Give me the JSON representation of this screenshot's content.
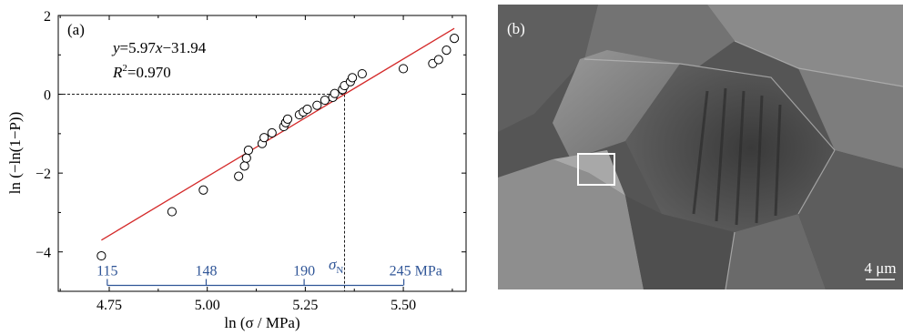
{
  "panel_a": {
    "label": "(a)",
    "equation": "y=5.97x−31.94",
    "equation_y": "y",
    "equation_rest": "=5.97",
    "equation_x": "x",
    "equation_tail": "−31.94",
    "r2_prefix": "R",
    "r2_sup": "2",
    "r2_value": "=0.970",
    "sigma_n_symbol": "σ",
    "sigma_n_sub": "N"
  },
  "panel_b": {
    "label": "(b)",
    "scale_bar": "4 μm"
  },
  "chart_data": {
    "type": "scatter",
    "title": "",
    "xlabel": "ln (σ / MPa)",
    "ylabel": "ln (−ln(1−P))",
    "xlim": [
      4.62,
      5.66
    ],
    "ylim": [
      -5,
      2
    ],
    "x_ticks": [
      "4.75",
      "5.00",
      "5.25",
      "5.50"
    ],
    "x_tick_values": [
      4.75,
      5.0,
      5.25,
      5.5
    ],
    "y_ticks": [
      "−4",
      "−2",
      "0",
      "2"
    ],
    "y_tick_values": [
      -4,
      -2,
      0,
      2
    ],
    "fit_line": {
      "slope": 5.97,
      "intercept": -31.94,
      "x_range": [
        4.73,
        5.63
      ],
      "color": "#d42a2a"
    },
    "sigma_n_x": 5.35,
    "secondary_axis": {
      "labels": [
        "115",
        "148",
        "190",
        "245 MPa"
      ],
      "values": [
        115,
        148,
        190,
        245
      ],
      "color": "#2f5597",
      "y_value": -4.85,
      "x_range": [
        4.745,
        5.5
      ]
    },
    "points": [
      [
        4.73,
        -4.1
      ],
      [
        4.91,
        -2.98
      ],
      [
        4.99,
        -2.43
      ],
      [
        5.08,
        -2.08
      ],
      [
        5.095,
        -1.82
      ],
      [
        5.1,
        -1.62
      ],
      [
        5.105,
        -1.42
      ],
      [
        5.14,
        -1.25
      ],
      [
        5.145,
        -1.1
      ],
      [
        5.165,
        -0.98
      ],
      [
        5.195,
        -0.82
      ],
      [
        5.2,
        -0.72
      ],
      [
        5.205,
        -0.63
      ],
      [
        5.235,
        -0.52
      ],
      [
        5.245,
        -0.45
      ],
      [
        5.255,
        -0.38
      ],
      [
        5.28,
        -0.28
      ],
      [
        5.3,
        -0.15
      ],
      [
        5.32,
        -0.08
      ],
      [
        5.325,
        0.02
      ],
      [
        5.345,
        0.12
      ],
      [
        5.35,
        0.22
      ],
      [
        5.365,
        0.32
      ],
      [
        5.37,
        0.42
      ],
      [
        5.395,
        0.52
      ],
      [
        5.5,
        0.65
      ],
      [
        5.575,
        0.78
      ],
      [
        5.59,
        0.88
      ],
      [
        5.61,
        1.12
      ],
      [
        5.63,
        1.42
      ]
    ]
  }
}
